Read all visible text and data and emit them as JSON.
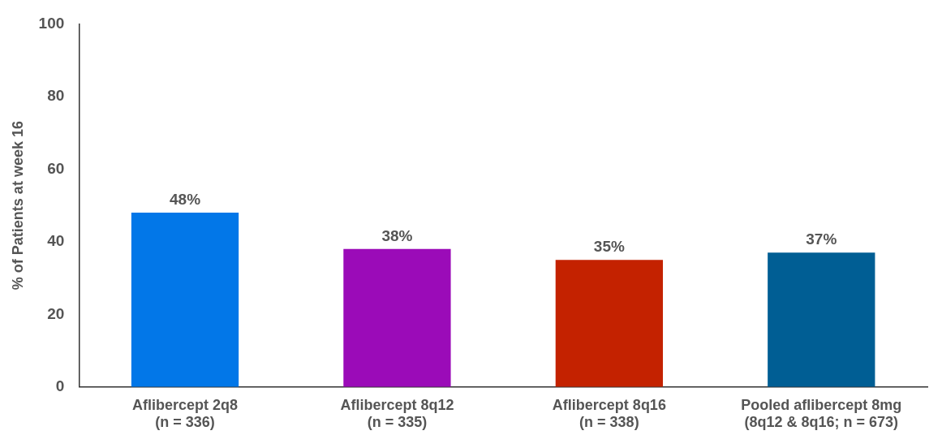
{
  "chart_data": {
    "type": "bar",
    "ylabel": "% of Patients at week 16",
    "categories": [
      "Aflibercept 2q8\n(n = 336)",
      "Aflibercept 8q12\n(n = 335)",
      "Aflibercept 8q16\n(n = 338)",
      "Pooled aflibercept 8mg\n(8q12 & 8q16; n = 673)"
    ],
    "values": [
      48,
      38,
      35,
      37
    ],
    "colors": [
      "#0277e8",
      "#9b0bb8",
      "#c42200",
      "#005e94"
    ],
    "value_labels": [
      "48%",
      "38%",
      "35%",
      "37%"
    ],
    "ylim": [
      0,
      100
    ],
    "yticks": [
      0,
      20,
      40,
      60,
      80,
      100
    ],
    "grid": false,
    "legend": false
  }
}
